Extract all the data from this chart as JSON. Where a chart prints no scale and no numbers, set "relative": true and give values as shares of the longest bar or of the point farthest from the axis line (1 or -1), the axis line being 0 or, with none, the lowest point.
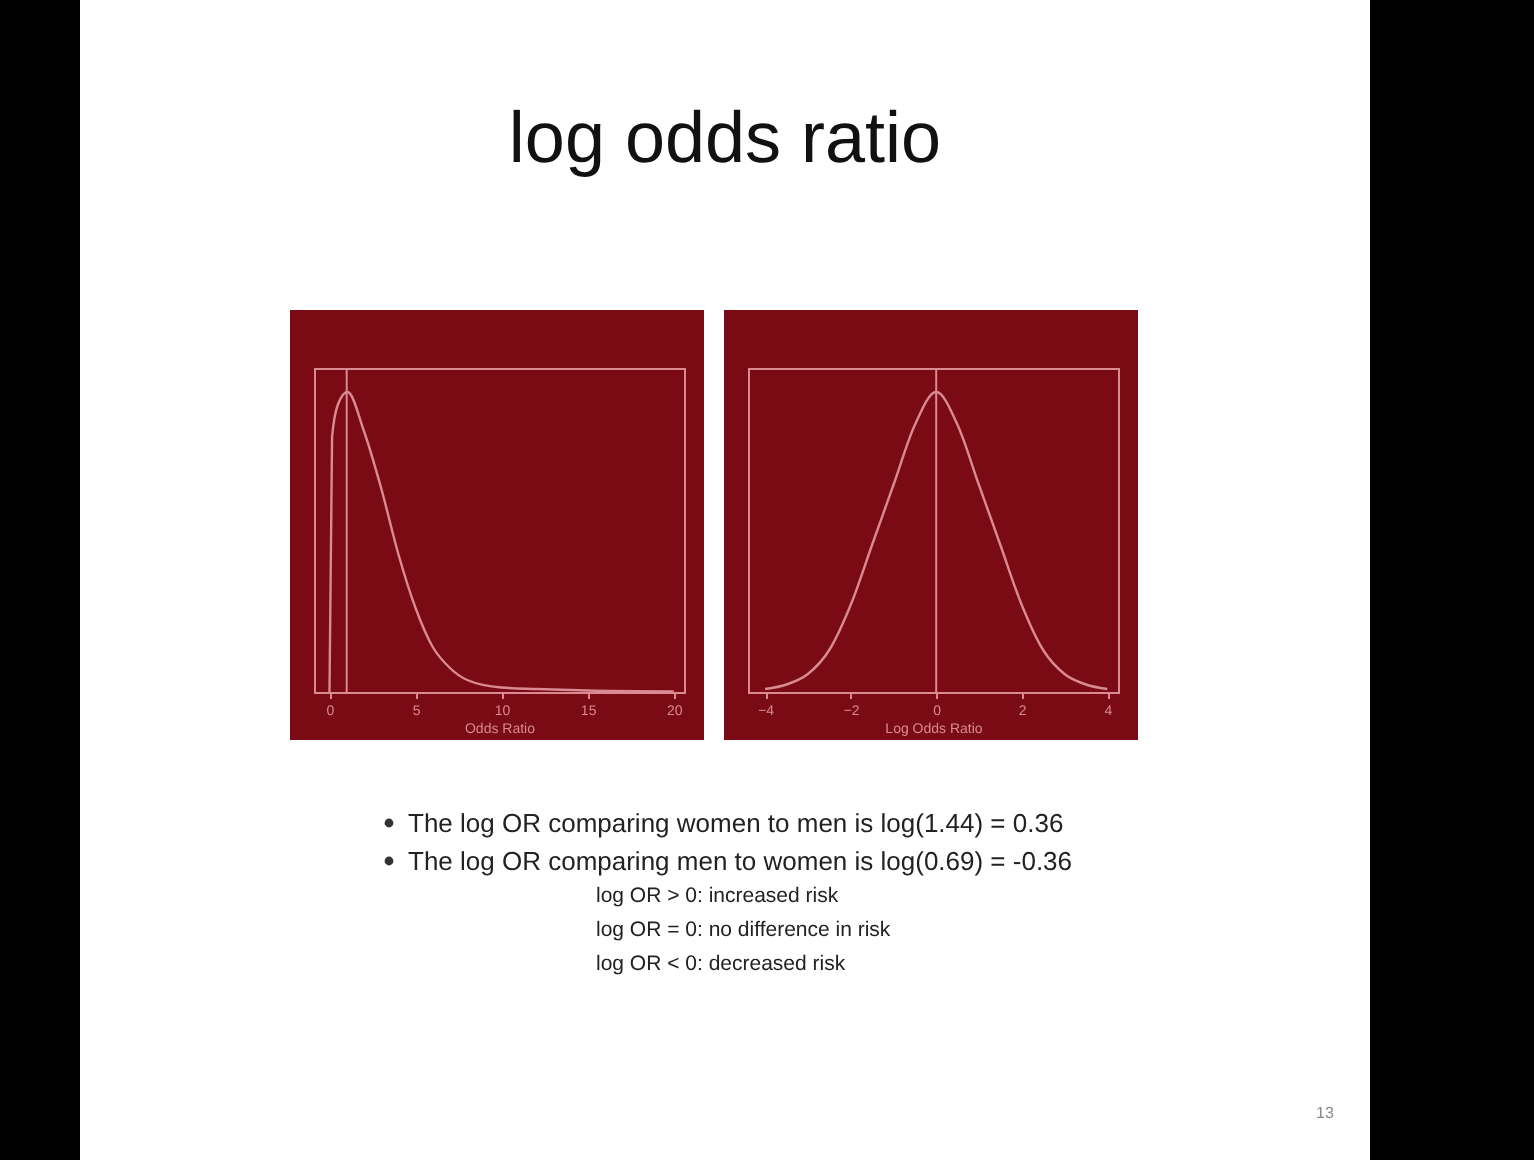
{
  "chart_data": [
    {
      "type": "line",
      "title": "log odds ratio",
      "xlabel": "Odds Ratio",
      "relative": true,
      "xlim": [
        -0.9,
        20.6
      ],
      "xticks": [
        0,
        5,
        10,
        15,
        20
      ],
      "grid": false,
      "marker": "none",
      "line_style": "solid",
      "x": [
        0,
        0.15,
        0.5,
        1.05,
        2,
        3,
        4,
        5,
        6,
        7,
        8,
        10,
        12,
        15,
        20
      ],
      "series": [
        {
          "color": "#d98a93",
          "values": [
            0,
            0.85,
            0.96,
            1,
            0.87,
            0.68,
            0.46,
            0.28,
            0.15,
            0.08,
            0.04,
            0.015,
            0.01,
            0.005,
            0.002
          ]
        }
      ],
      "ref_lines": [
        {
          "axis": "x",
          "value": 1,
          "color": "#d98a93"
        }
      ]
    },
    {
      "type": "line",
      "xlabel": "Log Odds Ratio",
      "relative": true,
      "xlim": [
        -4.4,
        4.25
      ],
      "xticks": [
        -4,
        -2,
        0,
        2,
        4
      ],
      "grid": false,
      "marker": "none",
      "line_style": "solid",
      "x": [
        -4,
        -3.5,
        -3,
        -2.5,
        -2,
        -1.5,
        -1,
        -0.5,
        0,
        0.5,
        1,
        1.5,
        2,
        2.5,
        3,
        3.5,
        4
      ],
      "series": [
        {
          "color": "#d98a93",
          "values": [
            0.01,
            0.025,
            0.06,
            0.14,
            0.29,
            0.49,
            0.69,
            0.89,
            1,
            0.89,
            0.69,
            0.49,
            0.29,
            0.14,
            0.06,
            0.025,
            0.01
          ]
        }
      ],
      "ref_lines": [
        {
          "axis": "x",
          "value": 0,
          "color": "#d98a93"
        }
      ],
      "annotations": [
        "The log OR comparing women to men is log(1.44) =  0.36",
        "The log OR comparing men to women is log(0.69) = -0.36",
        "log OR > 0:  increased risk",
        "log OR = 0:  no difference in risk",
        "log OR < 0:  decreased risk",
        "13"
      ]
    }
  ]
}
